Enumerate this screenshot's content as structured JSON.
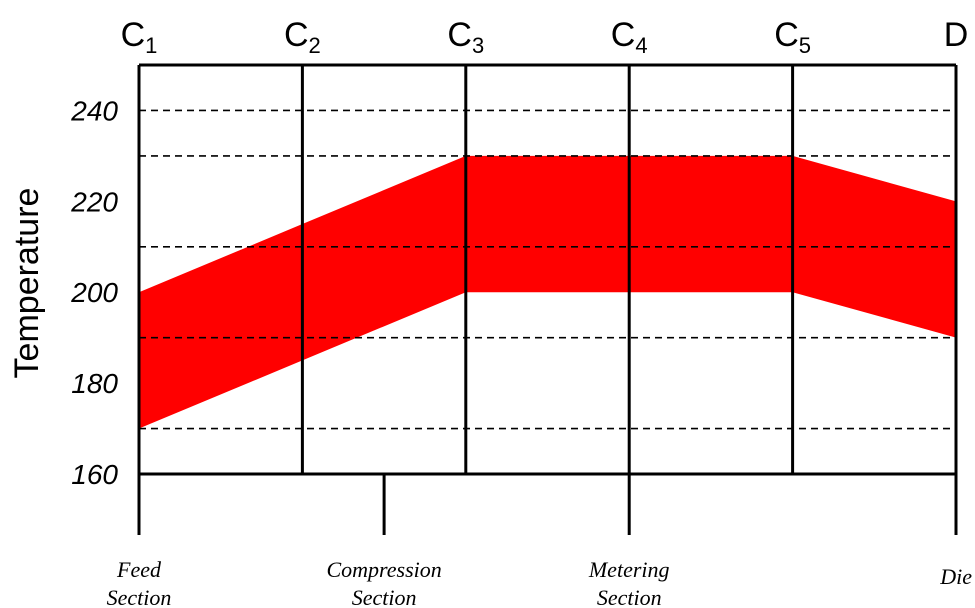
{
  "chart_data": {
    "type": "area",
    "title": "",
    "ylabel": "Temperature",
    "ylim": [
      160,
      250
    ],
    "yticks": [
      160,
      180,
      200,
      220,
      240
    ],
    "dashed_gridlines": [
      170,
      190,
      210,
      230,
      240
    ],
    "zones": [
      {
        "main": "C",
        "sub": "1"
      },
      {
        "main": "C",
        "sub": "2"
      },
      {
        "main": "C",
        "sub": "3"
      },
      {
        "main": "C",
        "sub": "4"
      },
      {
        "main": "C",
        "sub": "5"
      },
      {
        "main": "D",
        "sub": ""
      }
    ],
    "series": [
      {
        "lower": [
          170,
          185,
          200,
          200,
          200,
          190
        ],
        "upper": [
          200,
          215,
          230,
          230,
          230,
          220
        ]
      }
    ],
    "fill_color": "#ff0000",
    "sections": [
      {
        "line1": "Feed",
        "line2": "Section",
        "position": 0
      },
      {
        "line1": "Compression",
        "line2": "Section",
        "position": 1.5
      },
      {
        "line1": "Metering",
        "line2": "Section",
        "position": 3
      },
      {
        "line1": "",
        "line2": "Die",
        "position": 5
      }
    ]
  }
}
